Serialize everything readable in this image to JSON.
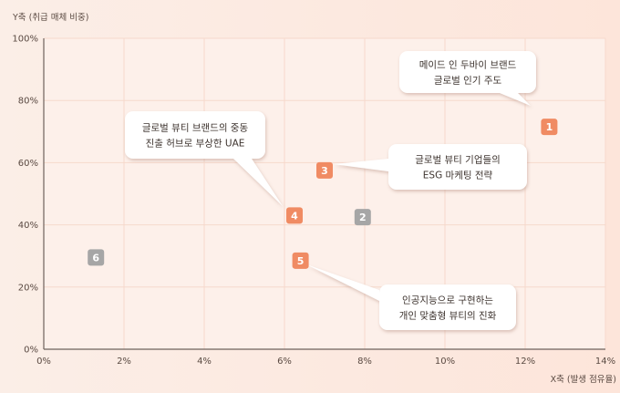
{
  "chart_data": {
    "type": "scatter",
    "xlabel": "X축 (발생 점유율)",
    "ylabel": "Y축 (취급 매체 비중)",
    "xlim": [
      0,
      14
    ],
    "ylim": [
      0,
      100
    ],
    "xticks": [
      "0%",
      "2%",
      "4%",
      "6%",
      "8%",
      "10%",
      "12%",
      "14%"
    ],
    "yticks": [
      "0%",
      "20%",
      "40%",
      "60%",
      "80%",
      "100%"
    ],
    "grid": true,
    "points": [
      {
        "id": "1",
        "x": 12.6,
        "y": 71.5,
        "color": "#f08b63"
      },
      {
        "id": "2",
        "x": 7.95,
        "y": 42.5,
        "color": "#a6a6a6"
      },
      {
        "id": "3",
        "x": 7.0,
        "y": 57.5,
        "color": "#f08b63"
      },
      {
        "id": "4",
        "x": 6.25,
        "y": 43.0,
        "color": "#f08b63"
      },
      {
        "id": "5",
        "x": 6.4,
        "y": 28.5,
        "color": "#f08b63"
      },
      {
        "id": "6",
        "x": 1.3,
        "y": 29.5,
        "color": "#a6a6a6"
      }
    ],
    "annotations": [
      {
        "target": "1",
        "lines": [
          "메이드 인 두바이 브랜드",
          "글로벌 인기 주도"
        ]
      },
      {
        "target": "4",
        "lines": [
          "글로벌 뷰티 브랜드의 중동",
          "진출 허브로 부상한 UAE"
        ]
      },
      {
        "target": "3",
        "lines": [
          "글로벌 뷰티 기업들의",
          "ESG 마케팅 전략"
        ]
      },
      {
        "target": "5",
        "lines": [
          "인공지능으로 구현하는",
          "개인 맞춤형 뷰티의 진화"
        ]
      }
    ]
  }
}
